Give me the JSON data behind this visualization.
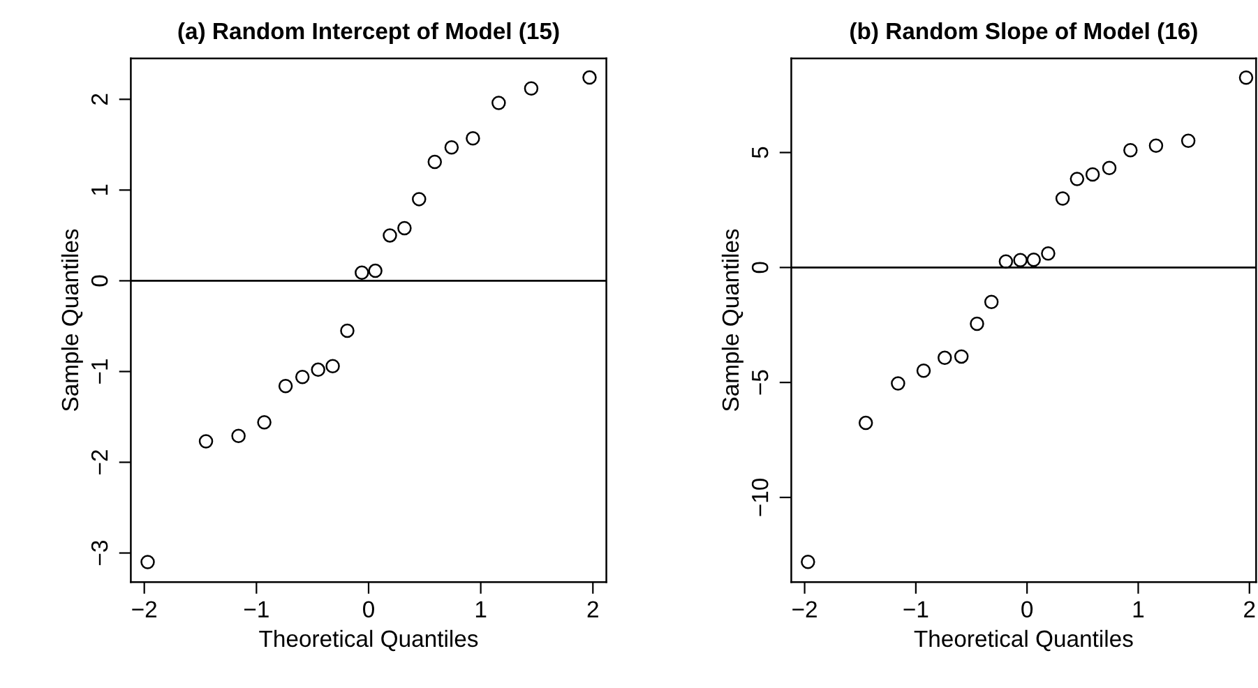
{
  "chart_data": [
    {
      "type": "scatter",
      "title": "(a) Random Intercept of Model (15)",
      "xlabel": "Theoretical Quantiles",
      "ylabel": "Sample Quantiles",
      "marker": "circle",
      "grid": false,
      "series": [
        {
          "color": "#000000",
          "x": [
            -1.97,
            -1.45,
            -1.16,
            -0.93,
            -0.74,
            -0.59,
            -0.45,
            -0.32,
            -0.19,
            -0.06,
            0.06,
            0.19,
            0.32,
            0.45,
            0.59,
            0.74,
            0.93,
            1.16,
            1.45,
            1.97
          ],
          "values": [
            -3.1,
            -1.77,
            -1.71,
            -1.56,
            -1.16,
            -1.06,
            -0.98,
            -0.94,
            -0.55,
            0.09,
            0.11,
            0.5,
            0.58,
            0.9,
            1.31,
            1.47,
            1.57,
            1.96,
            2.12,
            2.24
          ]
        }
      ],
      "xlim": [
        -2.12,
        2.12
      ],
      "xticks": [
        -2,
        -1,
        0,
        1,
        2
      ],
      "ylim": [
        -3.32,
        2.45
      ],
      "yticks": [
        -3,
        -2,
        -1,
        0,
        1,
        2
      ],
      "ref_lines": [
        {
          "axis": "y",
          "value": 0,
          "color": "#000000"
        }
      ]
    },
    {
      "type": "scatter",
      "title": "(b) Random Slope of Model (16)",
      "xlabel": "Theoretical Quantiles",
      "ylabel": "Sample Quantiles",
      "marker": "circle",
      "grid": false,
      "series": [
        {
          "color": "#000000",
          "x": [
            -1.97,
            -1.45,
            -1.16,
            -0.93,
            -0.74,
            -0.59,
            -0.45,
            -0.32,
            -0.19,
            -0.06,
            0.06,
            0.19,
            0.32,
            0.45,
            0.59,
            0.74,
            0.93,
            1.16,
            1.45,
            1.97
          ],
          "values": [
            -12.8,
            -6.76,
            -5.04,
            -4.49,
            -3.93,
            -3.87,
            -2.45,
            -1.5,
            0.26,
            0.32,
            0.34,
            0.61,
            3.0,
            3.85,
            4.05,
            4.33,
            5.1,
            5.3,
            5.51,
            8.26
          ]
        }
      ],
      "xlim": [
        -2.12,
        2.06
      ],
      "xticks": [
        -2,
        -1,
        0,
        1,
        2
      ],
      "ylim": [
        -13.68,
        9.09
      ],
      "yticks": [
        -10,
        -5,
        0,
        5
      ],
      "ref_lines": [
        {
          "axis": "y",
          "value": 0,
          "color": "#000000"
        }
      ]
    }
  ]
}
